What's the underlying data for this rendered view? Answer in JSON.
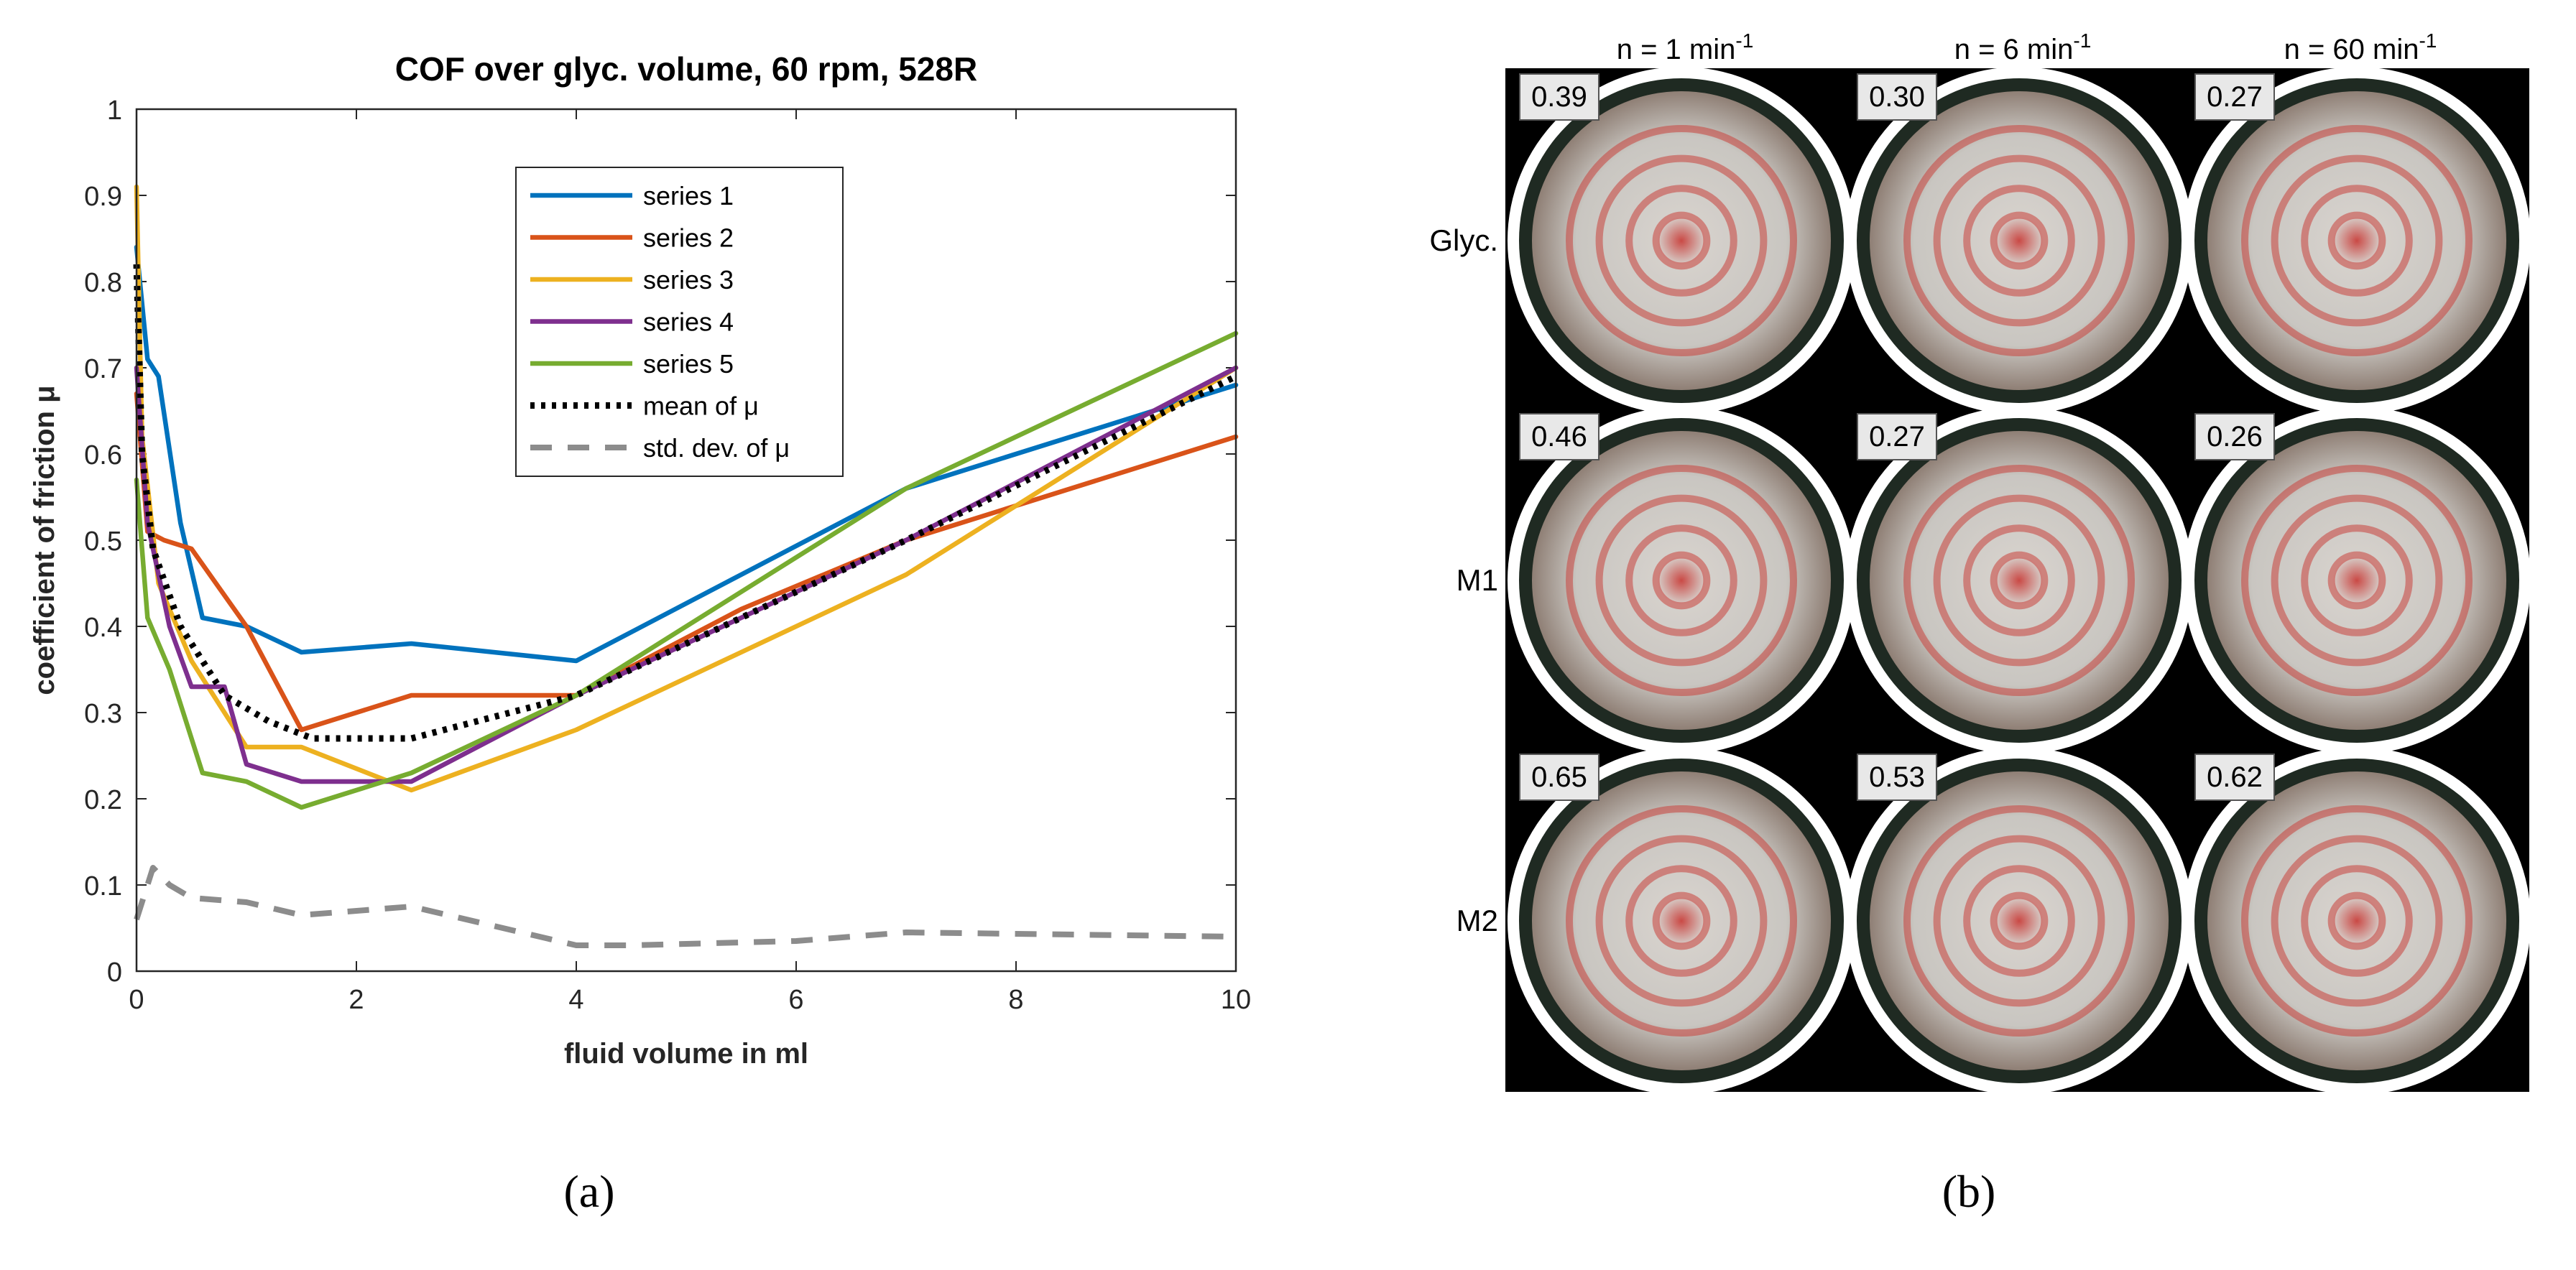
{
  "chart_data": {
    "type": "line",
    "title": "COF over glyc. volume, 60 rpm, 528R",
    "xlabel": "fluid volume in ml",
    "ylabel": "coefficient of friction μ",
    "xlim": [
      0,
      10
    ],
    "ylim": [
      0,
      1
    ],
    "xticks": [
      0,
      2,
      4,
      6,
      8,
      10
    ],
    "yticks": [
      0,
      0.1,
      0.2,
      0.3,
      0.4,
      0.5,
      0.6,
      0.7,
      0.8,
      0.9,
      1
    ],
    "xtick_labels": [
      "0",
      "2",
      "4",
      "6",
      "8",
      "10"
    ],
    "ytick_labels": [
      "0",
      "0.1",
      "0.2",
      "0.3",
      "0.4",
      "0.5",
      "0.6",
      "0.7",
      "0.8",
      "0.9",
      "1"
    ],
    "grid": false,
    "legend_position": "top-right",
    "series": [
      {
        "name": "series 1",
        "color": "#0072BD",
        "style": "solid",
        "x": [
          0,
          0.1,
          0.2,
          0.4,
          0.6,
          1.0,
          1.5,
          2.5,
          4,
          5.5,
          7,
          10
        ],
        "y": [
          0.84,
          0.71,
          0.69,
          0.52,
          0.41,
          0.4,
          0.37,
          0.38,
          0.36,
          0.46,
          0.56,
          0.68
        ]
      },
      {
        "name": "series 2",
        "color": "#D95319",
        "style": "solid",
        "x": [
          0,
          0.1,
          0.25,
          0.5,
          1.0,
          1.5,
          2.5,
          4,
          5.5,
          7,
          10
        ],
        "y": [
          0.67,
          0.51,
          0.5,
          0.49,
          0.4,
          0.28,
          0.32,
          0.32,
          0.42,
          0.5,
          0.62
        ]
      },
      {
        "name": "series 3",
        "color": "#EDB120",
        "style": "solid",
        "x": [
          0,
          0.05,
          0.2,
          0.5,
          1.0,
          1.5,
          2.5,
          4,
          7,
          10
        ],
        "y": [
          0.91,
          0.62,
          0.45,
          0.36,
          0.26,
          0.26,
          0.21,
          0.28,
          0.46,
          0.7
        ]
      },
      {
        "name": "series 4",
        "color": "#7E2F8E",
        "style": "solid",
        "x": [
          0,
          0.1,
          0.3,
          0.5,
          0.8,
          1.0,
          1.5,
          2.5,
          4,
          7,
          10
        ],
        "y": [
          0.7,
          0.52,
          0.4,
          0.33,
          0.33,
          0.24,
          0.22,
          0.22,
          0.32,
          0.5,
          0.7
        ]
      },
      {
        "name": "series 5",
        "color": "#77AC30",
        "style": "solid",
        "x": [
          0,
          0.1,
          0.3,
          0.6,
          1.0,
          1.5,
          2.5,
          4,
          7,
          10
        ],
        "y": [
          0.57,
          0.41,
          0.35,
          0.23,
          0.22,
          0.19,
          0.23,
          0.32,
          0.56,
          0.74
        ]
      },
      {
        "name": "mean of μ",
        "color": "#000000",
        "style": "dotted",
        "x": [
          0,
          0.05,
          0.15,
          0.4,
          0.8,
          1.2,
          1.6,
          2.5,
          4,
          7,
          10
        ],
        "y": [
          0.82,
          0.6,
          0.49,
          0.4,
          0.32,
          0.29,
          0.27,
          0.27,
          0.32,
          0.5,
          0.69
        ]
      },
      {
        "name": "std. dev. of μ",
        "color": "#8C8C8C",
        "style": "dashed",
        "x": [
          0,
          0.15,
          0.3,
          0.5,
          1.0,
          1.5,
          2.5,
          3.5,
          4,
          4.5,
          6,
          7,
          10
        ],
        "y": [
          0.06,
          0.12,
          0.1,
          0.085,
          0.08,
          0.065,
          0.075,
          0.045,
          0.03,
          0.03,
          0.035,
          0.045,
          0.04
        ]
      }
    ]
  },
  "panels": {
    "a_label": "(a)",
    "b_label": "(b)"
  },
  "photo_grid": {
    "columns": [
      "n = 1 min",
      "n = 6 min",
      "n = 60 min"
    ],
    "column_exponent": "-1",
    "rows": [
      {
        "label": "Glyc.",
        "values": [
          "0.39",
          "0.30",
          "0.27"
        ]
      },
      {
        "label": "M1",
        "values": [
          "0.46",
          "0.27",
          "0.26"
        ]
      },
      {
        "label": "M2",
        "values": [
          "0.65",
          "0.53",
          "0.62"
        ]
      }
    ]
  }
}
